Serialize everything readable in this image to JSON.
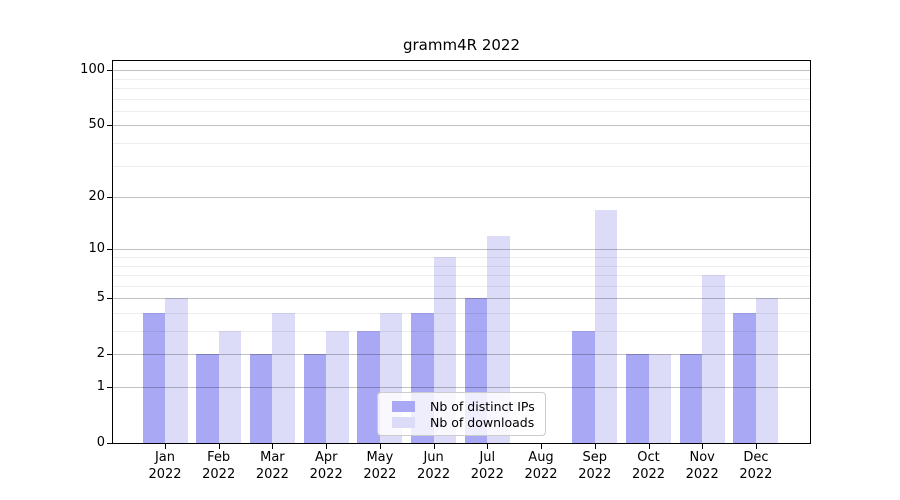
{
  "title": "gramm4R 2022",
  "legend": {
    "items": [
      {
        "label": "Nb of distinct IPs",
        "color": "#a8a8f5"
      },
      {
        "label": "Nb of downloads",
        "color": "#dcdcf8"
      }
    ]
  },
  "chart_data": {
    "type": "bar",
    "title": "gramm4R 2022",
    "categories": [
      "Jan 2022",
      "Feb 2022",
      "Mar 2022",
      "Apr 2022",
      "May 2022",
      "Jun 2022",
      "Jul 2022",
      "Aug 2022",
      "Sep 2022",
      "Oct 2022",
      "Nov 2022",
      "Dec 2022"
    ],
    "series": [
      {
        "name": "Nb of distinct IPs",
        "color": "#a8a8f5",
        "values": [
          4,
          2,
          2,
          2,
          3,
          4,
          5,
          0,
          3,
          2,
          2,
          4
        ]
      },
      {
        "name": "Nb of downloads",
        "color": "#dcdcf8",
        "values": [
          5,
          3,
          4,
          3,
          4,
          9,
          12,
          0,
          17,
          2,
          7,
          5
        ]
      }
    ],
    "xlabel": "",
    "ylabel": "",
    "y_scale": "log1p",
    "y_ticks": [
      0,
      1,
      2,
      5,
      10,
      20,
      50,
      100
    ],
    "y_minor_gridlines": [
      3,
      4,
      6,
      7,
      8,
      9,
      30,
      40,
      60,
      70,
      80,
      90
    ],
    "ylim": [
      0,
      112
    ],
    "grid": true,
    "legend_position": "inside-bottom-center"
  },
  "colors": {
    "background": "#ffffff",
    "spine": "#000000",
    "text": "#000000",
    "legend_border": "#cccccc"
  }
}
